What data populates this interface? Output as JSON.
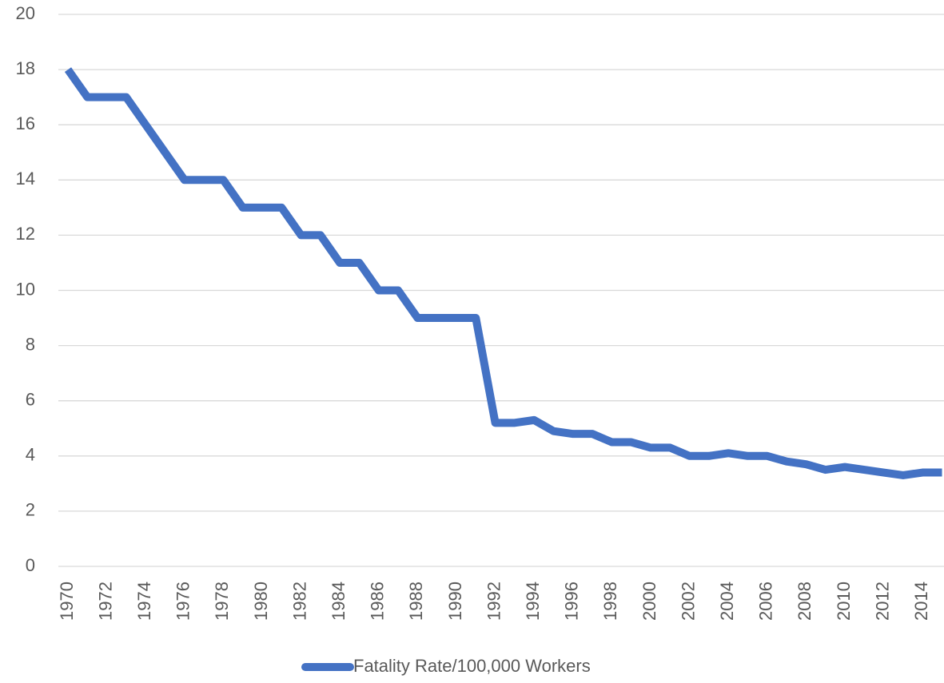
{
  "chart_data": {
    "type": "line",
    "categories": [
      "1970",
      null,
      "1972",
      null,
      "1974",
      null,
      "1976",
      null,
      "1978",
      null,
      "1980",
      null,
      "1982",
      null,
      "1984",
      null,
      "1986",
      null,
      "1988",
      null,
      "1990",
      null,
      "1992",
      null,
      "1994",
      null,
      "1996",
      null,
      "1998",
      null,
      "2000",
      null,
      "2002",
      null,
      "2004",
      null,
      "2006",
      null,
      "2008",
      null,
      "2010",
      null,
      "2012",
      null,
      "2014",
      null
    ],
    "series": [
      {
        "name": "Fatality Rate/100,000 Workers",
        "color": "#4472c4",
        "values": [
          18,
          17,
          17,
          17,
          16,
          15,
          14,
          14,
          14,
          13,
          13,
          13,
          12,
          12,
          11,
          11,
          10,
          10,
          9,
          9,
          9,
          9,
          5.2,
          5.2,
          5.3,
          4.9,
          4.8,
          4.8,
          4.5,
          4.5,
          4.3,
          4.3,
          4.0,
          4.0,
          4.1,
          4.0,
          4.0,
          3.8,
          3.7,
          3.5,
          3.6,
          3.5,
          3.4,
          3.3,
          3.4,
          3.4
        ]
      }
    ],
    "ylim": [
      0,
      20
    ],
    "yticks": [
      0,
      2,
      4,
      6,
      8,
      10,
      12,
      14,
      16,
      18,
      20
    ],
    "grid": true,
    "legend": "bottom"
  }
}
